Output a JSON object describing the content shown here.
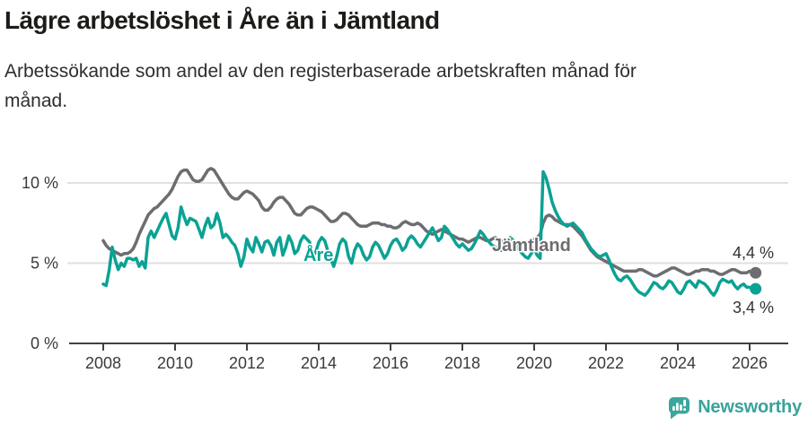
{
  "header": {
    "title": "Lägre arbetslöshet i Åre än i Jämtland",
    "subtitle_lines": [
      "Arbetssökande som andel av den registerbaserade arbetskraften månad för",
      "månad."
    ]
  },
  "footer": {
    "brand": "Newsworthy",
    "logo_icon": "bar-chart-speech-bubble-icon"
  },
  "colors": {
    "are_line": "#0ba294",
    "jamtland_line": "#6d6d71",
    "grid": "#e0e0e0",
    "axis": "#404040",
    "tick_text": "#3a3a3a",
    "value_text": "#333333",
    "brand": "#38a39a",
    "background": "#ffffff"
  },
  "chart_data": {
    "type": "line",
    "title": "Lägre arbetslöshet i Åre än i Jämtland",
    "xlabel": "",
    "ylabel": "",
    "y_unit": "%",
    "frequency": "monthly",
    "x_start_month": "2008-01",
    "x_end_month": "2026-03",
    "ylim": [
      0,
      11.5
    ],
    "grid": "horizontal",
    "legend_position": "inline-labels",
    "x_ticks": [
      2008,
      2010,
      2012,
      2014,
      2016,
      2018,
      2020,
      2022,
      2024,
      2026
    ],
    "y_ticks": [
      {
        "value": 0,
        "label": "0 %"
      },
      {
        "value": 5,
        "label": "5 %"
      },
      {
        "value": 10,
        "label": "10 %"
      }
    ],
    "series": [
      {
        "key": "jamtland",
        "name": "Jämtland",
        "color": "#6d6d71",
        "end_value": 4.4,
        "end_label": "4,4 %",
        "values": [
          6.4,
          6.1,
          5.9,
          5.8,
          5.7,
          5.6,
          5.5,
          5.6,
          5.6,
          5.7,
          5.9,
          6.3,
          6.8,
          7.2,
          7.6,
          8.0,
          8.2,
          8.4,
          8.5,
          8.7,
          8.9,
          9.1,
          9.3,
          9.6,
          10.0,
          10.4,
          10.7,
          10.8,
          10.8,
          10.5,
          10.2,
          10.1,
          10.1,
          10.2,
          10.5,
          10.8,
          10.9,
          10.8,
          10.5,
          10.2,
          9.9,
          9.6,
          9.3,
          9.1,
          9.0,
          9.0,
          9.2,
          9.4,
          9.5,
          9.4,
          9.3,
          9.1,
          8.9,
          8.5,
          8.3,
          8.3,
          8.5,
          8.8,
          9.0,
          9.1,
          9.1,
          8.9,
          8.7,
          8.4,
          8.1,
          8.0,
          8.0,
          8.2,
          8.4,
          8.5,
          8.5,
          8.4,
          8.3,
          8.2,
          8.0,
          7.8,
          7.6,
          7.6,
          7.7,
          7.9,
          8.1,
          8.1,
          8.0,
          7.8,
          7.6,
          7.4,
          7.3,
          7.3,
          7.3,
          7.4,
          7.5,
          7.5,
          7.5,
          7.4,
          7.4,
          7.3,
          7.3,
          7.2,
          7.2,
          7.3,
          7.5,
          7.6,
          7.5,
          7.4,
          7.4,
          7.5,
          7.4,
          7.2,
          7.0,
          6.9,
          6.8,
          6.9,
          7.0,
          7.1,
          7.0,
          6.9,
          6.8,
          6.7,
          6.6,
          6.5,
          6.5,
          6.4,
          6.3,
          6.4,
          6.5,
          6.6,
          6.6,
          6.5,
          6.4,
          6.4,
          6.5,
          6.6,
          6.5,
          6.4,
          6.3,
          6.2,
          6.1,
          6.1,
          6.2,
          6.2,
          6.3,
          6.3,
          6.3,
          6.4,
          6.5,
          6.6,
          6.8,
          7.5,
          7.9,
          8.0,
          7.9,
          7.7,
          7.6,
          7.5,
          7.4,
          7.4,
          7.4,
          7.3,
          7.1,
          6.9,
          6.7,
          6.4,
          6.1,
          5.8,
          5.6,
          5.4,
          5.3,
          5.2,
          5.1,
          5.0,
          4.9,
          4.8,
          4.7,
          4.6,
          4.5,
          4.5,
          4.5,
          4.5,
          4.5,
          4.6,
          4.6,
          4.5,
          4.4,
          4.3,
          4.2,
          4.2,
          4.3,
          4.4,
          4.5,
          4.6,
          4.7,
          4.7,
          4.6,
          4.5,
          4.4,
          4.3,
          4.3,
          4.4,
          4.5,
          4.5,
          4.6,
          4.6,
          4.6,
          4.5,
          4.5,
          4.4,
          4.3,
          4.3,
          4.4,
          4.5,
          4.6,
          4.6,
          4.5,
          4.4,
          4.4,
          4.4,
          4.5,
          4.4,
          4.4
        ]
      },
      {
        "key": "are",
        "name": "Åre",
        "color": "#0ba294",
        "end_value": 3.4,
        "end_label": "3,4 %",
        "values": [
          3.7,
          3.6,
          4.6,
          6.0,
          5.2,
          4.6,
          5.0,
          4.8,
          5.3,
          5.3,
          5.2,
          5.3,
          4.8,
          5.1,
          4.7,
          6.6,
          7.0,
          6.6,
          7.0,
          7.4,
          7.8,
          8.1,
          7.4,
          6.7,
          6.5,
          7.2,
          8.5,
          7.9,
          7.4,
          7.8,
          7.7,
          7.6,
          7.1,
          6.6,
          7.3,
          7.8,
          7.2,
          7.4,
          8.1,
          7.5,
          6.6,
          6.8,
          6.6,
          6.3,
          6.1,
          5.6,
          4.8,
          5.4,
          6.5,
          6.0,
          5.7,
          6.6,
          6.2,
          5.7,
          6.3,
          6.4,
          6.1,
          5.5,
          6.3,
          6.6,
          5.5,
          6.0,
          6.7,
          6.3,
          5.6,
          5.8,
          6.4,
          6.7,
          6.5,
          6.3,
          5.4,
          5.7,
          6.3,
          6.6,
          6.4,
          5.8,
          5.3,
          4.8,
          5.4,
          6.2,
          6.5,
          6.3,
          5.4,
          5.0,
          5.8,
          6.2,
          6.0,
          5.5,
          5.2,
          5.4,
          6.0,
          6.3,
          6.1,
          5.7,
          5.3,
          5.6,
          6.1,
          6.4,
          6.5,
          6.2,
          5.8,
          6.0,
          6.5,
          6.7,
          6.5,
          6.2,
          6.0,
          6.3,
          6.6,
          6.9,
          7.2,
          6.8,
          6.4,
          6.6,
          7.3,
          7.1,
          6.8,
          6.5,
          6.2,
          6.0,
          6.2,
          6.0,
          5.8,
          5.9,
          6.2,
          6.6,
          7.0,
          6.8,
          6.5,
          6.3,
          6.1,
          6.0,
          5.9,
          5.8,
          6.0,
          6.3,
          6.6,
          6.4,
          6.1,
          5.8,
          5.6,
          5.4,
          5.3,
          5.6,
          5.9,
          5.5,
          5.3,
          10.7,
          10.3,
          9.6,
          8.8,
          8.3,
          7.9,
          7.6,
          7.4,
          7.3,
          7.4,
          7.5,
          7.3,
          7.1,
          6.9,
          6.5,
          6.2,
          5.9,
          5.7,
          5.5,
          5.4,
          5.5,
          5.6,
          5.2,
          4.7,
          4.3,
          4.0,
          3.9,
          4.1,
          4.2,
          4.0,
          3.7,
          3.4,
          3.2,
          3.1,
          3.0,
          3.2,
          3.5,
          3.8,
          3.7,
          3.5,
          3.4,
          3.6,
          3.9,
          3.8,
          3.5,
          3.2,
          3.1,
          3.4,
          3.8,
          3.9,
          3.7,
          3.5,
          3.9,
          3.8,
          3.7,
          3.5,
          3.2,
          3.0,
          3.3,
          3.8,
          4.0,
          3.9,
          3.8,
          3.9,
          3.6,
          3.4,
          3.6,
          3.7,
          3.5,
          3.5,
          3.4,
          3.4
        ]
      }
    ]
  }
}
